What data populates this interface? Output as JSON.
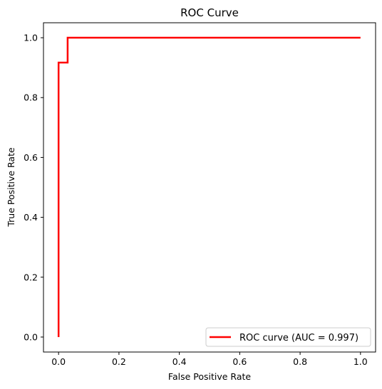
{
  "chart_data": {
    "type": "line",
    "title": "ROC Curve",
    "xlabel": "False Positive Rate",
    "ylabel": "True Positive Rate",
    "xlim": [
      -0.05,
      1.05
    ],
    "ylim": [
      -0.05,
      1.05
    ],
    "x_ticks": [
      "0.0",
      "0.2",
      "0.4",
      "0.6",
      "0.8",
      "1.0"
    ],
    "y_ticks": [
      "0.0",
      "0.2",
      "0.4",
      "0.6",
      "0.8",
      "1.0"
    ],
    "grid": false,
    "legend_position": "lower-right",
    "series": [
      {
        "name": "ROC curve (AUC = 0.997)",
        "color": "#ff0000",
        "x": [
          0.0,
          0.0,
          0.03,
          0.03,
          1.0
        ],
        "y": [
          0.0,
          0.917,
          0.917,
          1.0,
          1.0
        ]
      }
    ]
  }
}
